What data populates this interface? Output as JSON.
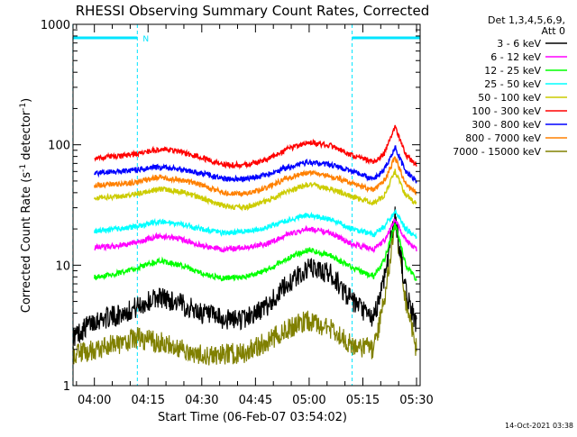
{
  "chart_data": {
    "type": "line",
    "title": "RHESSI Observing Summary Count Rates, Corrected",
    "xlabel": "Start Time (06-Feb-07 03:54:02)",
    "ylabel": "Corrected Count Rate (s",
    "ylabel_sup1": "-1",
    "ylabel_mid": " detector",
    "ylabel_sup2": "-1",
    "ylabel_end": ")",
    "y_scale": "log",
    "ylim": [
      1,
      1000
    ],
    "y_ticks": [
      {
        "v": 1,
        "label": "1"
      },
      {
        "v": 10,
        "label": "10"
      },
      {
        "v": 100,
        "label": "100"
      },
      {
        "v": 1000,
        "label": "1000"
      }
    ],
    "xlim": [
      "03:54:02",
      "05:31:00"
    ],
    "x_ticks": [
      "04:00",
      "04:15",
      "04:30",
      "04:45",
      "05:00",
      "05:15",
      "05:30"
    ],
    "timestamp": "14-Oct-2021 03:38",
    "legend": {
      "position": "right",
      "header": [
        "Det 1,3,4,5,6,9,",
        "Att 0"
      ],
      "entries": [
        {
          "label": "3 - 6 keV",
          "color": "#000000"
        },
        {
          "label": "6 - 12 keV",
          "color": "#ff00ff"
        },
        {
          "label": "12 - 25 keV",
          "color": "#00ff00"
        },
        {
          "label": "25 - 50 keV",
          "color": "#00ffff"
        },
        {
          "label": "50 - 100 keV",
          "color": "#cccc00"
        },
        {
          "label": "100 - 300 keV",
          "color": "#ff0000"
        },
        {
          "label": "300 - 800 keV",
          "color": "#0000ff"
        },
        {
          "label": "800 - 7000 keV",
          "color": "#ff8000"
        },
        {
          "label": "7000 - 15000 keV",
          "color": "#808000"
        }
      ]
    },
    "annotations": {
      "night_intervals": [
        [
          "03:54",
          "04:12"
        ],
        [
          "05:12",
          "05:31"
        ]
      ],
      "saa_marker": {
        "label": "N",
        "time": "04:12"
      }
    },
    "series": [
      {
        "name": "3 - 6 keV",
        "color": "#000000",
        "x": [
          "03:54",
          "04:00",
          "04:06",
          "04:12",
          "04:18",
          "04:24",
          "04:30",
          "04:36",
          "04:42",
          "04:48",
          "04:54",
          "05:00",
          "05:06",
          "05:12",
          "05:18",
          "05:21",
          "05:24",
          "05:27",
          "05:30"
        ],
        "y": [
          2.5,
          3.5,
          3.8,
          4.5,
          5.5,
          4.8,
          4.0,
          3.5,
          3.6,
          4.5,
          7.0,
          9.5,
          8.5,
          5.0,
          3.5,
          8.0,
          26,
          6.0,
          3.2
        ]
      },
      {
        "name": "6 - 12 keV",
        "color": "#ff00ff",
        "x": [
          "04:00",
          "04:06",
          "04:12",
          "04:18",
          "04:24",
          "04:30",
          "04:36",
          "04:42",
          "04:48",
          "04:54",
          "05:00",
          "05:06",
          "05:12",
          "05:18",
          "05:21",
          "05:24",
          "05:27",
          "05:30"
        ],
        "y": [
          14,
          14.5,
          15.5,
          17.5,
          16.5,
          14.5,
          13.5,
          14,
          15,
          18,
          20,
          18.5,
          15,
          13.5,
          16,
          24,
          16,
          13.5
        ]
      },
      {
        "name": "12 - 25 keV",
        "color": "#00ff00",
        "x": [
          "04:00",
          "04:06",
          "04:12",
          "04:18",
          "04:24",
          "04:30",
          "04:36",
          "04:42",
          "04:48",
          "04:54",
          "05:00",
          "05:06",
          "05:12",
          "05:18",
          "05:21",
          "05:24",
          "05:27",
          "05:30"
        ],
        "y": [
          8.0,
          8.5,
          9.5,
          11,
          10,
          8.5,
          7.8,
          8,
          9,
          11.5,
          13.5,
          12,
          9.5,
          8,
          11,
          22,
          10,
          7.5
        ]
      },
      {
        "name": "25 - 50 keV",
        "color": "#00ffff",
        "x": [
          "04:00",
          "04:06",
          "04:12",
          "04:18",
          "04:24",
          "04:30",
          "04:36",
          "04:42",
          "04:48",
          "04:54",
          "05:00",
          "05:06",
          "05:12",
          "05:18",
          "05:21",
          "05:24",
          "05:27",
          "05:30"
        ],
        "y": [
          19,
          20,
          21,
          23,
          22,
          20,
          18.5,
          19,
          20.5,
          23.5,
          26,
          24,
          20,
          18,
          21,
          28,
          20,
          17
        ]
      },
      {
        "name": "50 - 100 keV",
        "color": "#cccc00",
        "x": [
          "04:00",
          "04:06",
          "04:12",
          "04:18",
          "04:24",
          "04:30",
          "04:36",
          "04:42",
          "04:48",
          "04:54",
          "05:00",
          "05:06",
          "05:12",
          "05:18",
          "05:21",
          "05:24",
          "05:27",
          "05:30"
        ],
        "y": [
          36,
          37,
          39,
          43,
          41,
          36,
          31,
          30,
          34,
          41,
          47,
          43,
          37,
          33,
          38,
          60,
          38,
          32
        ]
      },
      {
        "name": "100 - 300 keV",
        "color": "#ff0000",
        "x": [
          "04:00",
          "04:06",
          "04:12",
          "04:18",
          "04:24",
          "04:30",
          "04:36",
          "04:42",
          "04:48",
          "04:54",
          "05:00",
          "05:06",
          "05:12",
          "05:18",
          "05:21",
          "05:24",
          "05:27",
          "05:30"
        ],
        "y": [
          78,
          80,
          84,
          92,
          88,
          78,
          68,
          68,
          75,
          92,
          105,
          98,
          82,
          72,
          85,
          140,
          82,
          68
        ]
      },
      {
        "name": "300 - 800 keV",
        "color": "#0000ff",
        "x": [
          "04:00",
          "04:06",
          "04:12",
          "04:18",
          "04:24",
          "04:30",
          "04:36",
          "04:42",
          "04:48",
          "04:54",
          "05:00",
          "05:06",
          "05:12",
          "05:18",
          "05:21",
          "05:24",
          "05:27",
          "05:30"
        ],
        "y": [
          58,
          60,
          62,
          65,
          63,
          58,
          52,
          52,
          56,
          65,
          72,
          68,
          60,
          52,
          62,
          95,
          60,
          50
        ]
      },
      {
        "name": "800 - 7000 keV",
        "color": "#ff8000",
        "x": [
          "04:00",
          "04:06",
          "04:12",
          "04:18",
          "04:24",
          "04:30",
          "04:36",
          "04:42",
          "04:48",
          "04:54",
          "05:00",
          "05:06",
          "05:12",
          "05:18",
          "05:21",
          "05:24",
          "05:27",
          "05:30"
        ],
        "y": [
          46,
          47,
          49,
          54,
          51,
          46,
          40,
          39,
          44,
          53,
          59,
          55,
          48,
          42,
          50,
          78,
          47,
          40
        ]
      },
      {
        "name": "7000 - 15000 keV",
        "color": "#808000",
        "x": [
          "03:54",
          "04:00",
          "04:06",
          "04:12",
          "04:18",
          "04:24",
          "04:30",
          "04:36",
          "04:42",
          "04:48",
          "04:54",
          "05:00",
          "05:06",
          "05:12",
          "05:18",
          "05:21",
          "05:24",
          "05:27",
          "05:30"
        ],
        "y": [
          1.8,
          2.0,
          2.2,
          2.5,
          2.3,
          2.0,
          1.8,
          1.8,
          1.9,
          2.3,
          3.0,
          3.5,
          3.0,
          2.2,
          2.0,
          5,
          24,
          5,
          2.0
        ]
      }
    ]
  }
}
